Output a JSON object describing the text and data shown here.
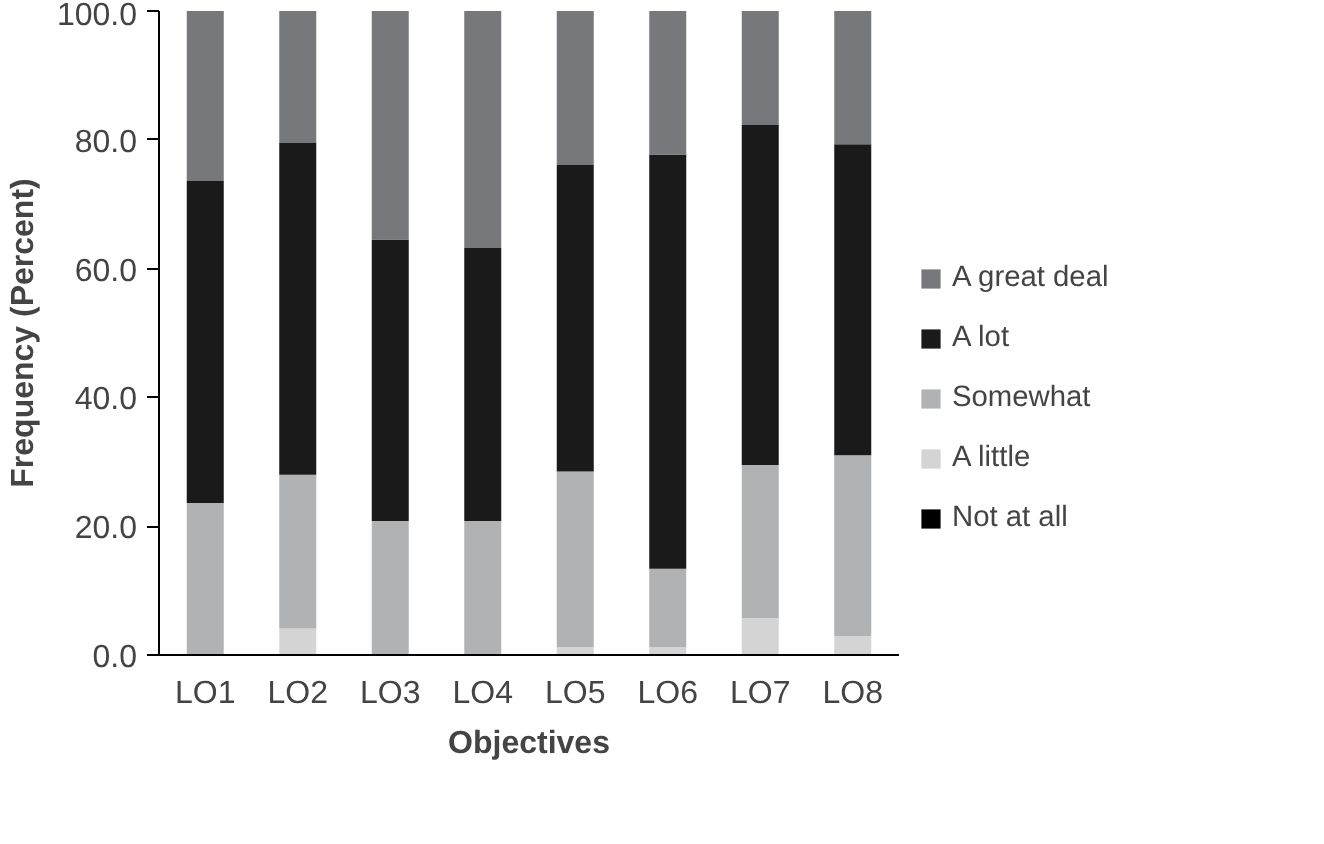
{
  "chart_data": {
    "type": "bar",
    "stacked": true,
    "xlabel": "Objectives",
    "ylabel": "Frequency (Percent)",
    "categories": [
      "LO1",
      "LO2",
      "LO3",
      "LO4",
      "LO5",
      "LO6",
      "LO7",
      "LO8"
    ],
    "series": [
      {
        "name": "Not at all",
        "color": "#000000",
        "values": [
          0,
          0,
          0,
          0,
          0,
          0,
          0,
          0
        ]
      },
      {
        "name": "A little",
        "color": "#d4d4d4",
        "values": [
          0,
          4.1,
          0,
          0,
          1.2,
          1.2,
          5.7,
          2.9
        ]
      },
      {
        "name": "Somewhat",
        "color": "#b1b2b4",
        "values": [
          23.6,
          23.9,
          20.8,
          20.8,
          27.3,
          12.2,
          23.8,
          28.1
        ]
      },
      {
        "name": "A lot",
        "color": "#1a1a1a",
        "values": [
          50.0,
          51.5,
          43.7,
          42.4,
          47.6,
          64.3,
          52.8,
          48.3
        ]
      },
      {
        "name": "A great deal",
        "color": "#77787b",
        "values": [
          26.4,
          20.5,
          35.5,
          36.8,
          23.9,
          22.3,
          17.7,
          20.7
        ]
      }
    ],
    "ylim": [
      0,
      100
    ],
    "yticks": [
      {
        "value": 0,
        "label": "0.0"
      },
      {
        "value": 20,
        "label": "20.0"
      },
      {
        "value": 40,
        "label": "40.0"
      },
      {
        "value": 60,
        "label": "60.0"
      },
      {
        "value": 80,
        "label": "80.0"
      },
      {
        "value": 100,
        "label": "100.0"
      }
    ],
    "grid": false,
    "legend": "right"
  }
}
